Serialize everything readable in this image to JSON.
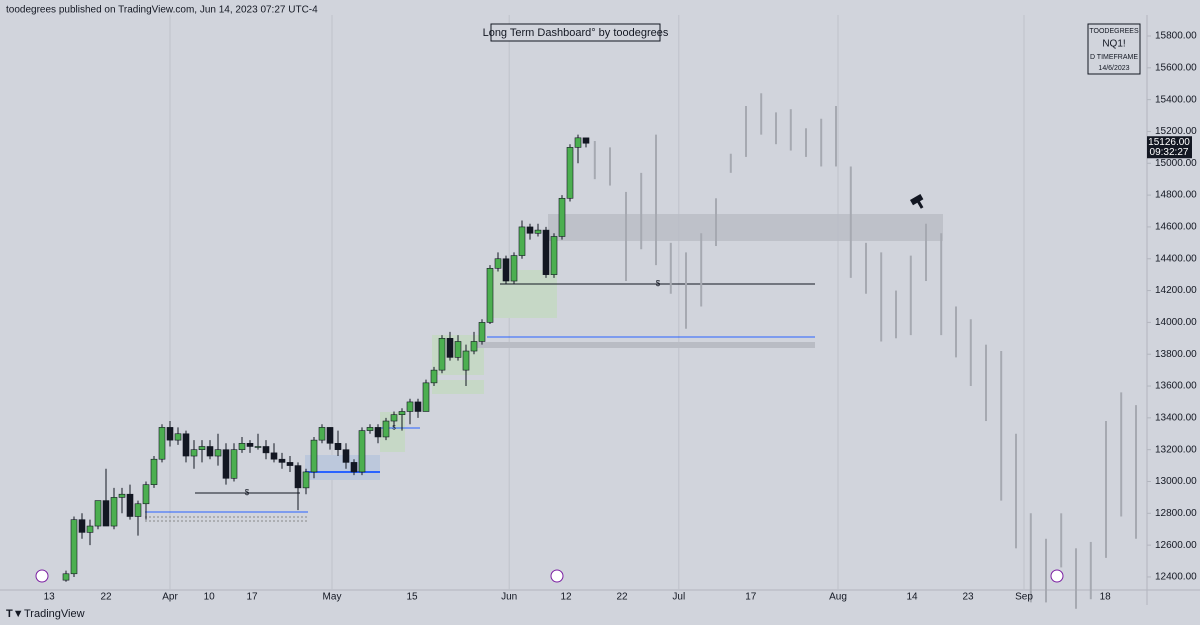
{
  "header": "toodegrees published on TradingView.com, Jun 14, 2023 07:27 UTC-4",
  "footer": "TradingView",
  "dashboard": {
    "title": "Long Term Dashboard° by toodegrees",
    "author": "TOODEGREES",
    "symbol": "NQ1!",
    "timeframe": "D TIMEFRAME",
    "date": "14/6/2023"
  },
  "last_price": {
    "value": 15126,
    "label": "15126.00",
    "countdown": "09:32:27"
  },
  "annotations": [
    "$",
    "$",
    "$"
  ],
  "chart_data": {
    "type": "candlestick",
    "xlim": [
      -8.25,
      135.125
    ],
    "ylim": [
      12318,
      15932
    ],
    "xticks": [
      {
        "value": -2.1,
        "label": "13"
      },
      {
        "value": 5,
        "label": "22"
      },
      {
        "value": 13,
        "label": "Apr"
      },
      {
        "value": 17.9,
        "label": "10"
      },
      {
        "value": 23.25,
        "label": "17"
      },
      {
        "value": 33.25,
        "label": "May"
      },
      {
        "value": 43.25,
        "label": "15"
      },
      {
        "value": 55.4,
        "label": "Jun"
      },
      {
        "value": 62.5,
        "label": "12"
      },
      {
        "value": 69.5,
        "label": "22"
      },
      {
        "value": 76.6,
        "label": "Jul"
      },
      {
        "value": 85.6,
        "label": "17"
      },
      {
        "value": 96.5,
        "label": "Aug"
      },
      {
        "value": 105.75,
        "label": "14"
      },
      {
        "value": 112.75,
        "label": "23"
      },
      {
        "value": 119.75,
        "label": "Sep"
      },
      {
        "value": 129.9,
        "label": "18"
      }
    ],
    "yticks": [
      {
        "value": 12400,
        "label": "12400.00"
      },
      {
        "value": 12600,
        "label": "12600.00"
      },
      {
        "value": 12800,
        "label": "12800.00"
      },
      {
        "value": 13000,
        "label": "13000.00"
      },
      {
        "value": 13200,
        "label": "13200.00"
      },
      {
        "value": 13400,
        "label": "13400.00"
      },
      {
        "value": 13600,
        "label": "13600.00"
      },
      {
        "value": 13800,
        "label": "13800.00"
      },
      {
        "value": 14000,
        "label": "14000.00"
      },
      {
        "value": 14200,
        "label": "14200.00"
      },
      {
        "value": 14400,
        "label": "14400.00"
      },
      {
        "value": 14600,
        "label": "14600.00"
      },
      {
        "value": 14800,
        "label": "14800.00"
      },
      {
        "value": 15000,
        "label": "15000.00"
      },
      {
        "value": 15200,
        "label": "15200.00"
      },
      {
        "value": 15400,
        "label": "15400.00"
      },
      {
        "value": 15600,
        "label": "15600.00"
      },
      {
        "value": 15800,
        "label": "15800.00"
      }
    ],
    "up_color": "#4caf50",
    "down_color": "#131722",
    "x": [
      0,
      1,
      2,
      3,
      4,
      5,
      6,
      7,
      8,
      9,
      10,
      11,
      12,
      13,
      14,
      15,
      16,
      17,
      18,
      19,
      20,
      21,
      22,
      23,
      24,
      25,
      26,
      27,
      28,
      29,
      30,
      31,
      32,
      33,
      34,
      35,
      36,
      37,
      38,
      39,
      40,
      41,
      42,
      43,
      44,
      45,
      46,
      47,
      48,
      49,
      50,
      51,
      52,
      53,
      54,
      55,
      56,
      57,
      58,
      59,
      60,
      61,
      62,
      63,
      64,
      65
    ],
    "open": [
      12380,
      12420,
      12760,
      12680,
      12720,
      12880,
      12720,
      12900,
      12920,
      12780,
      12860,
      12980,
      13140,
      13340,
      13260,
      13300,
      13160,
      13200,
      13220,
      13160,
      13200,
      13020,
      13200,
      13240,
      13220,
      13220,
      13180,
      13140,
      13120,
      13100,
      12960,
      13060,
      13260,
      13340,
      13240,
      13200,
      13120,
      13060,
      13320,
      13340,
      13280,
      13380,
      13420,
      13440,
      13500,
      13440,
      13620,
      13700,
      13900,
      13780,
      13700,
      13820,
      13880,
      14000,
      14340,
      14400,
      14260,
      14420,
      14600,
      14560,
      14580,
      14300,
      14540,
      14780,
      15100,
      15160
    ],
    "high": [
      12440,
      12780,
      12800,
      12760,
      12880,
      13080,
      12960,
      12960,
      12980,
      12880,
      13000,
      13160,
      13360,
      13380,
      13340,
      13320,
      13260,
      13260,
      13260,
      13300,
      13240,
      13240,
      13280,
      13260,
      13300,
      13260,
      13240,
      13180,
      13160,
      13120,
      13080,
      13280,
      13360,
      13340,
      13320,
      13240,
      13140,
      13340,
      13360,
      13360,
      13400,
      13440,
      13460,
      13520,
      13520,
      13640,
      13720,
      13920,
      13940,
      13920,
      13860,
      13940,
      14020,
      14360,
      14440,
      14420,
      14440,
      14640,
      14620,
      14620,
      14600,
      14560,
      14800,
      15120,
      15180,
      15160
    ],
    "low": [
      12370,
      12400,
      12640,
      12600,
      12700,
      12720,
      12700,
      12800,
      12760,
      12660,
      12760,
      12960,
      13120,
      13220,
      13230,
      13120,
      13080,
      13120,
      13140,
      13100,
      12980,
      13000,
      13180,
      13180,
      13200,
      13140,
      13120,
      13080,
      13060,
      12820,
      12920,
      13020,
      13240,
      13200,
      13160,
      13080,
      13040,
      13040,
      13300,
      13240,
      13260,
      13340,
      13320,
      13360,
      13400,
      13440,
      13600,
      13680,
      13760,
      13760,
      13600,
      13800,
      13860,
      13990,
      14320,
      14240,
      14240,
      14400,
      14520,
      14540,
      14280,
      14280,
      14520,
      14760,
      15000,
      15100
    ],
    "close": [
      12420,
      12760,
      12680,
      12720,
      12880,
      12720,
      12900,
      12920,
      12780,
      12860,
      12980,
      13140,
      13340,
      13260,
      13300,
      13160,
      13200,
      13220,
      13160,
      13200,
      13020,
      13200,
      13240,
      13220,
      13220,
      13180,
      13140,
      13120,
      13100,
      12960,
      13060,
      13260,
      13340,
      13240,
      13200,
      13120,
      13060,
      13320,
      13340,
      13280,
      13380,
      13420,
      13440,
      13500,
      13440,
      13620,
      13700,
      13900,
      13780,
      13880,
      13820,
      13880,
      14000,
      14340,
      14400,
      14260,
      14420,
      14600,
      14560,
      14580,
      14300,
      14540,
      14780,
      15100,
      15160,
      15126
    ],
    "projection": {
      "color": "#a6a9b1",
      "x": [
        66.1,
        68,
        70,
        71.9,
        73.75,
        75.6,
        77.5,
        79.4,
        81.25,
        83.1,
        85,
        86.9,
        88.75,
        90.6,
        92.5,
        94.4,
        96.25,
        98.1,
        100,
        101.9,
        103.75,
        105.6,
        107.5,
        109.4,
        111.25,
        113.1,
        115,
        116.9,
        118.75,
        120.6,
        122.5,
        124.4,
        126.25,
        128.1,
        130,
        131.9,
        133.75
      ],
      "low": [
        14900,
        14860,
        14260,
        14460,
        14360,
        14180,
        13960,
        14100,
        14480,
        14940,
        15040,
        15180,
        15120,
        15080,
        15040,
        14980,
        14980,
        14280,
        14180,
        13880,
        13900,
        13920,
        14260,
        13920,
        13780,
        13600,
        13380,
        12880,
        12580,
        12240,
        12240,
        12460,
        12200,
        12260,
        12520,
        12780,
        12640
      ],
      "high": [
        15140,
        15100,
        14820,
        14940,
        15180,
        14500,
        14440,
        14560,
        14780,
        15060,
        15360,
        15440,
        15320,
        15340,
        15220,
        15280,
        15360,
        14980,
        14500,
        14440,
        14200,
        14420,
        14620,
        14560,
        14100,
        14020,
        13860,
        13820,
        13300,
        12800,
        12640,
        12800,
        12580,
        12620,
        13380,
        13560,
        13480
      ]
    }
  }
}
